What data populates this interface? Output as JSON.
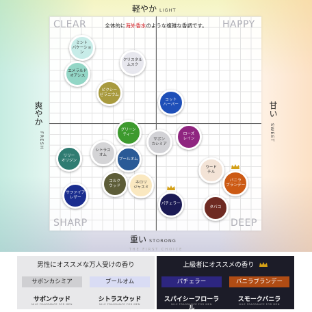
{
  "axes": {
    "top": {
      "jp": "軽やか",
      "en": "LIGHT"
    },
    "bottom": {
      "jp": "重い",
      "en": "STORONG"
    },
    "left": {
      "jp": "爽やか",
      "en": "FRESH"
    },
    "right": {
      "jp": "甘い",
      "en": "SWEET"
    }
  },
  "quadrants": {
    "top_left": "CLEAR",
    "top_right": "HAPPY",
    "bottom_left": "SHARP",
    "bottom_right": "DEEP"
  },
  "subtitle": {
    "pre": "全体的に",
    "highlight": "海外香水",
    "post": "のような複雑な香調です。"
  },
  "chart_data": {
    "type": "scatter",
    "x_axis": {
      "negative": "FRESH",
      "positive": "SWEET",
      "range": [
        -10,
        10
      ]
    },
    "y_axis": {
      "negative": "STORONG",
      "positive": "LIGHT",
      "range": [
        -10,
        10
      ]
    },
    "grid": true,
    "points": [
      {
        "label": "ミント\nバケーション",
        "x": -7.0,
        "y": 7.0,
        "color": "#c7ece8",
        "text": "dark",
        "crown": false
      },
      {
        "label": "エメラルド\nオアシス",
        "x": -7.4,
        "y": 4.6,
        "color": "#93d6c6",
        "text": "dark",
        "crown": false
      },
      {
        "label": "クリスタル\nムスク",
        "x": -2.2,
        "y": 5.6,
        "color": "#e7e7ee",
        "text": "dark",
        "crown": false
      },
      {
        "label": "ピクシー\nゼラニウム",
        "x": -4.4,
        "y": 2.8,
        "color": "#a89a3e",
        "text": "light",
        "crown": false
      },
      {
        "label": "ヨット\nハーバー",
        "x": 1.4,
        "y": 1.9,
        "color": "#1e4fb8",
        "text": "light",
        "crown": false
      },
      {
        "label": "グリーン\nティー",
        "x": -2.6,
        "y": -0.9,
        "color": "#3d9a2e",
        "text": "light",
        "crown": false
      },
      {
        "label": "サボン\nカシミア",
        "x": 0.3,
        "y": -1.8,
        "color": "#d2d2d6",
        "text": "dark",
        "crown": false
      },
      {
        "label": "ローズ\nレイン",
        "x": 3.1,
        "y": -1.3,
        "color": "#8f2580",
        "text": "light",
        "crown": false
      },
      {
        "label": "シトラス\nオム",
        "x": -5.0,
        "y": -2.8,
        "color": "#d4d4d6",
        "text": "dark",
        "crown": false
      },
      {
        "label": "プールオム",
        "x": -2.6,
        "y": -3.4,
        "color": "#2a5a96",
        "text": "light",
        "crown": false
      },
      {
        "label": "リリー\nオリジン",
        "x": -8.2,
        "y": -3.3,
        "color": "#2f7c72",
        "text": "light",
        "crown": false
      },
      {
        "label": "ウード\nチル",
        "x": 5.2,
        "y": -4.4,
        "color": "#f3e3d6",
        "text": "dark",
        "crown": false
      },
      {
        "label": "バニラ\nブランデー",
        "x": 7.5,
        "y": -5.6,
        "color": "#cc5a14",
        "text": "light",
        "crown": true
      },
      {
        "label": "コルク\nウッド",
        "x": -3.9,
        "y": -5.7,
        "color": "#5d5d38",
        "text": "light",
        "crown": false
      },
      {
        "label": "ネロリ\nジャスミ",
        "x": -1.4,
        "y": -5.8,
        "color": "#fae8c0",
        "text": "dark",
        "crown": false
      },
      {
        "label": "サファイア\nレザー",
        "x": -7.6,
        "y": -6.8,
        "color": "#1a2d8f",
        "text": "light",
        "crown": false
      },
      {
        "label": "パチェラー",
        "x": 1.4,
        "y": -7.6,
        "color": "#1b1a54",
        "text": "light",
        "crown": true
      },
      {
        "label": "タバコ",
        "x": 5.6,
        "y": -7.9,
        "color": "#6e2a22",
        "text": "light",
        "crown": false
      }
    ]
  },
  "tagline": "THE FIRST CHOICE",
  "recommend_men": {
    "heading": "男性にオススメな万人受けの香り",
    "items": [
      {
        "tag": "サボンカシミア",
        "name": "サボンウッド",
        "note": "NILE FRAGRANCE FOR MEN"
      },
      {
        "tag": "プールオム",
        "name": "シトラスウッド",
        "note": "NILE FRAGRANCE FOR MEN"
      }
    ]
  },
  "recommend_advanced": {
    "heading": "上級者にオススメの香り",
    "items": [
      {
        "tag": "パチェラー",
        "name": "スパイシーフローラル",
        "note": "NILE FRAGRANCE FOR MEN"
      },
      {
        "tag": "バニラブランデー",
        "name": "スモークバニラ",
        "note": "NILE FRAGRANCE FOR MEN"
      }
    ]
  },
  "colors": {
    "accent_red": "#d0161c",
    "gold": "#d4a017",
    "tag_gray": "#cfcfd2",
    "tag_lavender": "#d9dcf4",
    "tag_purple": "#2d2680",
    "tag_orange": "#b04c14"
  }
}
